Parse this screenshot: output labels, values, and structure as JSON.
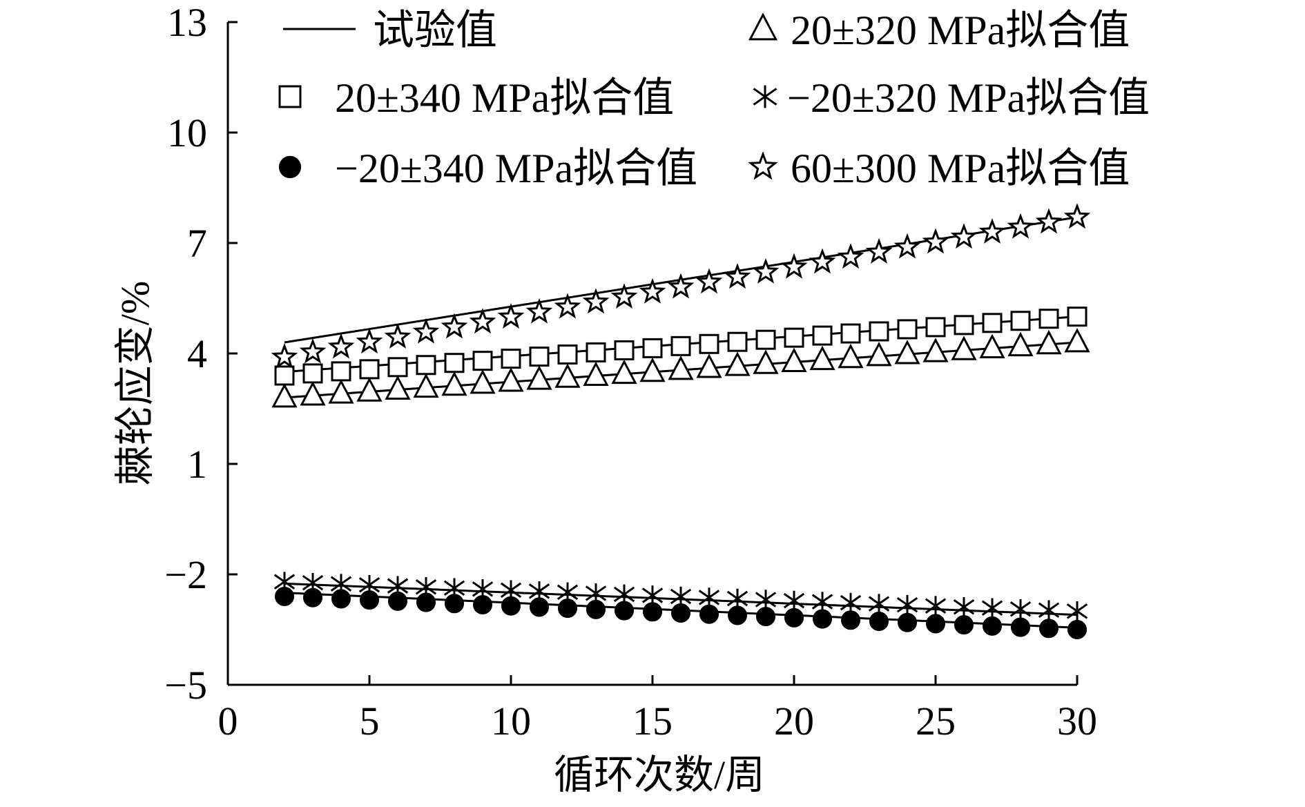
{
  "chart_data": {
    "type": "line",
    "xlabel": "循环次数/周",
    "ylabel": "棘轮应变/%",
    "xlim": [
      0,
      30
    ],
    "ylim": [
      -5,
      13
    ],
    "xticks": [
      0,
      5,
      10,
      15,
      20,
      25,
      30
    ],
    "yticks": [
      -5,
      -2,
      1,
      4,
      7,
      10,
      13
    ],
    "grid": false,
    "legend_position": "top",
    "series": [
      {
        "name": "试验值",
        "style": "line",
        "marker": "none",
        "x": [
          2,
          30
        ],
        "y": [
          4.3,
          7.7
        ],
        "sub": [
          {
            "x": [
              2,
              30
            ],
            "y": [
              3.5,
              5.0
            ]
          },
          {
            "x": [
              2,
              30
            ],
            "y": [
              2.8,
              4.3
            ]
          },
          {
            "x": [
              2,
              30
            ],
            "y": [
              -2.25,
              -3.1
            ]
          },
          {
            "x": [
              2,
              30
            ],
            "y": [
              -2.5,
              -3.45
            ]
          }
        ]
      },
      {
        "name": "20±320 MPa拟合值",
        "style": "marker",
        "marker": "triangle-open",
        "x": [
          2,
          30
        ],
        "y": [
          2.8,
          4.3
        ]
      },
      {
        "name": "20±340 MPa拟合值",
        "style": "marker",
        "marker": "square-open",
        "x": [
          2,
          30
        ],
        "y": [
          3.4,
          5.0
        ]
      },
      {
        "name": "−20±320 MPa拟合值",
        "style": "marker",
        "marker": "asterisk",
        "x": [
          2,
          30
        ],
        "y": [
          -2.2,
          -3.0
        ]
      },
      {
        "name": "−20±340 MPa拟合值",
        "style": "marker",
        "marker": "circle-filled",
        "x": [
          2,
          30
        ],
        "y": [
          -2.6,
          -3.5
        ]
      },
      {
        "name": "60±300 MPa拟合值",
        "style": "marker",
        "marker": "star-open",
        "x": [
          2,
          30
        ],
        "y": [
          3.9,
          7.7
        ]
      }
    ]
  }
}
